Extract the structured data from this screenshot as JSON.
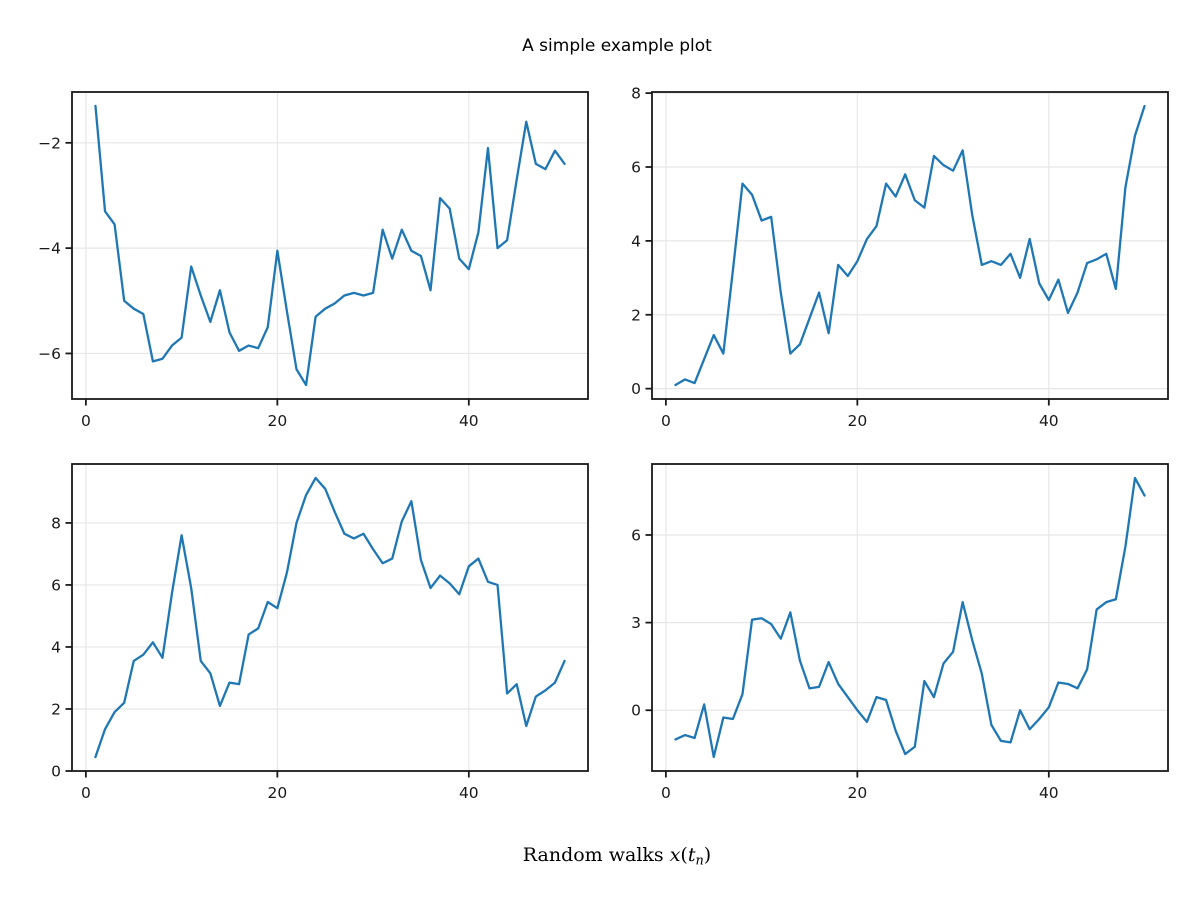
{
  "title": "A simple example plot",
  "caption": {
    "segments": [
      {
        "text": "Random walks ",
        "style": "roman"
      },
      {
        "text": "x",
        "style": "italic"
      },
      {
        "text": "(",
        "style": "roman"
      },
      {
        "text": "t",
        "style": "italic"
      },
      {
        "text": "n",
        "style": "sub"
      },
      {
        "text": ")",
        "style": "roman"
      }
    ]
  },
  "colors": {
    "line": "#1f77b4",
    "grid": "#e7e7e7",
    "spine": "#1a1a1a",
    "tick_label": "#1a1a1a",
    "background": "#ffffff"
  },
  "chart_data": [
    {
      "id": "top-left",
      "type": "line",
      "title": "",
      "xlabel": "",
      "ylabel": "",
      "grid": true,
      "legend_position": "none",
      "xlim": [
        -1.45,
        52.45
      ],
      "ylim": [
        -6.865,
        -1.035
      ],
      "xticks": [
        {
          "v": 0,
          "label": "0"
        },
        {
          "v": 20,
          "label": "20"
        },
        {
          "v": 40,
          "label": "40"
        }
      ],
      "yticks": [
        {
          "v": -2,
          "label": "−2"
        },
        {
          "v": -4,
          "label": "−4"
        },
        {
          "v": -6,
          "label": "−6"
        }
      ],
      "x": [
        1,
        2,
        3,
        4,
        5,
        6,
        7,
        8,
        9,
        10,
        11,
        12,
        13,
        14,
        15,
        16,
        17,
        18,
        19,
        20,
        21,
        22,
        23,
        24,
        25,
        26,
        27,
        28,
        29,
        30,
        31,
        32,
        33,
        34,
        35,
        36,
        37,
        38,
        39,
        40,
        41,
        42,
        43,
        44,
        45,
        46,
        47,
        48,
        49,
        50
      ],
      "y": [
        -1.3,
        -3.3,
        -3.55,
        -5.0,
        -5.15,
        -5.25,
        -6.15,
        -6.1,
        -5.85,
        -5.7,
        -4.35,
        -4.9,
        -5.4,
        -4.8,
        -5.6,
        -5.95,
        -5.85,
        -5.9,
        -5.5,
        -4.05,
        -5.2,
        -6.3,
        -6.6,
        -5.3,
        -5.15,
        -5.05,
        -4.9,
        -4.85,
        -4.9,
        -4.85,
        -3.65,
        -4.2,
        -3.65,
        -4.05,
        -4.15,
        -4.8,
        -3.05,
        -3.25,
        -4.2,
        -4.4,
        -3.7,
        -2.1,
        -4.0,
        -3.85,
        -2.7,
        -1.6,
        -2.4,
        -2.5,
        -2.15,
        -2.4
      ]
    },
    {
      "id": "top-right",
      "type": "line",
      "title": "",
      "xlabel": "",
      "ylabel": "",
      "grid": true,
      "legend_position": "none",
      "xlim": [
        -1.45,
        52.45
      ],
      "ylim": [
        -0.28,
        8.03
      ],
      "xticks": [
        {
          "v": 0,
          "label": "0"
        },
        {
          "v": 20,
          "label": "20"
        },
        {
          "v": 40,
          "label": "40"
        }
      ],
      "yticks": [
        {
          "v": 0,
          "label": "0"
        },
        {
          "v": 2,
          "label": "2"
        },
        {
          "v": 4,
          "label": "4"
        },
        {
          "v": 6,
          "label": "6"
        },
        {
          "v": 8,
          "label": "8"
        }
      ],
      "x": [
        1,
        2,
        3,
        4,
        5,
        6,
        7,
        8,
        9,
        10,
        11,
        12,
        13,
        14,
        15,
        16,
        17,
        18,
        19,
        20,
        21,
        22,
        23,
        24,
        25,
        26,
        27,
        28,
        29,
        30,
        31,
        32,
        33,
        34,
        35,
        36,
        37,
        38,
        39,
        40,
        41,
        42,
        43,
        44,
        45,
        46,
        47,
        48,
        49,
        50
      ],
      "y": [
        0.1,
        0.25,
        0.15,
        0.8,
        1.45,
        0.95,
        3.2,
        5.55,
        5.25,
        4.55,
        4.65,
        2.6,
        0.95,
        1.2,
        1.9,
        2.6,
        1.5,
        3.35,
        3.05,
        3.45,
        4.05,
        4.4,
        5.55,
        5.2,
        5.8,
        5.1,
        4.9,
        6.3,
        6.05,
        5.9,
        6.45,
        4.7,
        3.35,
        3.45,
        3.35,
        3.65,
        3.0,
        4.05,
        2.85,
        2.4,
        2.95,
        2.05,
        2.6,
        3.4,
        3.5,
        3.65,
        2.7,
        5.45,
        6.85,
        7.65
      ]
    },
    {
      "id": "bottom-left",
      "type": "line",
      "title": "",
      "xlabel": "",
      "ylabel": "",
      "grid": true,
      "legend_position": "none",
      "xlim": [
        -1.45,
        52.45
      ],
      "ylim": [
        0.0,
        9.9
      ],
      "xticks": [
        {
          "v": 0,
          "label": "0"
        },
        {
          "v": 20,
          "label": "20"
        },
        {
          "v": 40,
          "label": "40"
        }
      ],
      "yticks": [
        {
          "v": 0,
          "label": "0"
        },
        {
          "v": 2,
          "label": "2"
        },
        {
          "v": 4,
          "label": "4"
        },
        {
          "v": 6,
          "label": "6"
        },
        {
          "v": 8,
          "label": "8"
        }
      ],
      "x": [
        1,
        2,
        3,
        4,
        5,
        6,
        7,
        8,
        9,
        10,
        11,
        12,
        13,
        14,
        15,
        16,
        17,
        18,
        19,
        20,
        21,
        22,
        23,
        24,
        25,
        26,
        27,
        28,
        29,
        30,
        31,
        32,
        33,
        34,
        35,
        36,
        37,
        38,
        39,
        40,
        41,
        42,
        43,
        44,
        45,
        46,
        47,
        48,
        49,
        50
      ],
      "y": [
        0.45,
        1.35,
        1.9,
        2.2,
        3.55,
        3.75,
        4.15,
        3.65,
        5.75,
        7.6,
        5.9,
        3.55,
        3.15,
        2.1,
        2.85,
        2.8,
        4.4,
        4.6,
        5.45,
        5.25,
        6.4,
        8.0,
        8.9,
        9.45,
        9.1,
        8.35,
        7.65,
        7.5,
        7.65,
        7.15,
        6.7,
        6.85,
        8.05,
        8.7,
        6.8,
        5.9,
        6.3,
        6.05,
        5.7,
        6.6,
        6.85,
        6.1,
        6.0,
        2.5,
        2.8,
        1.45,
        2.4,
        2.6,
        2.85,
        3.55
      ]
    },
    {
      "id": "bottom-right",
      "type": "line",
      "title": "",
      "xlabel": "",
      "ylabel": "",
      "grid": true,
      "legend_position": "none",
      "xlim": [
        -1.45,
        52.45
      ],
      "ylim": [
        -2.08,
        8.43
      ],
      "xticks": [
        {
          "v": 0,
          "label": "0"
        },
        {
          "v": 20,
          "label": "20"
        },
        {
          "v": 40,
          "label": "40"
        }
      ],
      "yticks": [
        {
          "v": 0,
          "label": "0"
        },
        {
          "v": 3,
          "label": "3"
        },
        {
          "v": 6,
          "label": "6"
        }
      ],
      "x": [
        1,
        2,
        3,
        4,
        5,
        6,
        7,
        8,
        9,
        10,
        11,
        12,
        13,
        14,
        15,
        16,
        17,
        18,
        19,
        20,
        21,
        22,
        23,
        24,
        25,
        26,
        27,
        28,
        29,
        30,
        31,
        32,
        33,
        34,
        35,
        36,
        37,
        38,
        39,
        40,
        41,
        42,
        43,
        44,
        45,
        46,
        47,
        48,
        49,
        50
      ],
      "y": [
        -1.0,
        -0.85,
        -0.95,
        0.2,
        -1.6,
        -0.25,
        -0.3,
        0.55,
        3.1,
        3.15,
        2.95,
        2.45,
        3.35,
        1.7,
        0.75,
        0.8,
        1.65,
        0.9,
        0.45,
        0.0,
        -0.4,
        0.45,
        0.35,
        -0.7,
        -1.5,
        -1.25,
        1.0,
        0.45,
        1.6,
        2.0,
        3.7,
        2.4,
        1.25,
        -0.5,
        -1.05,
        -1.1,
        0.0,
        -0.65,
        -0.3,
        0.1,
        0.95,
        0.9,
        0.75,
        1.4,
        3.45,
        3.7,
        3.8,
        5.6,
        7.95,
        7.35
      ]
    }
  ]
}
